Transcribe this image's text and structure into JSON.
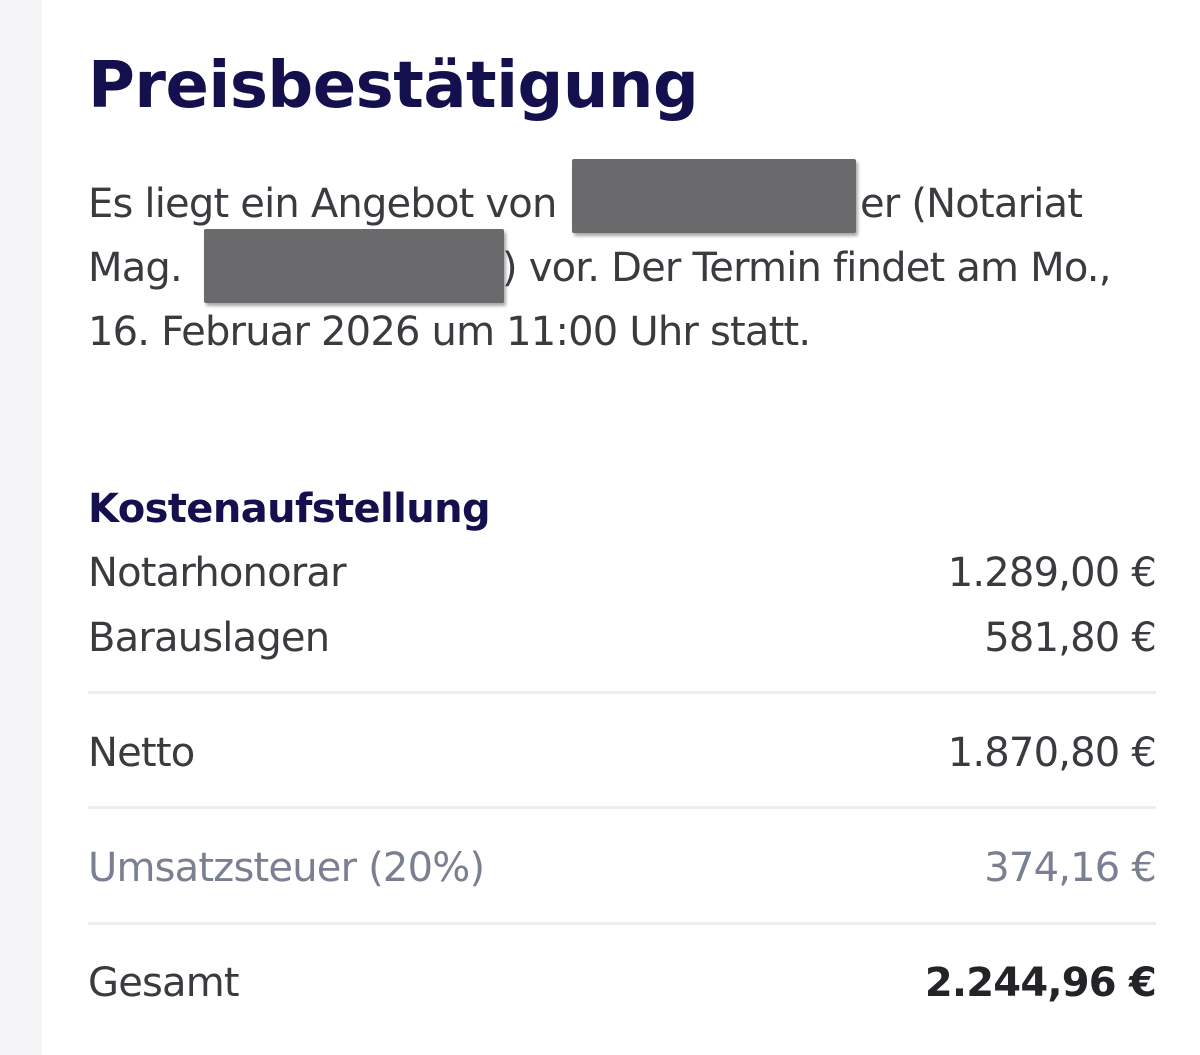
{
  "title": "Preisbestätigung",
  "intro": {
    "line1_a": "Es liegt ein Angebot von ",
    "line1_b": "er (Notariat",
    "line2_a": "Mag. ",
    "line2_b": ") vor. Der Termin findet am Mo.,",
    "line3": "16. Februar 2026 um 11:00 Uhr statt."
  },
  "costs": {
    "heading": "Kostenaufstellung",
    "rows": [
      {
        "label": "Notarhonorar",
        "amount": "1.289,00 €"
      },
      {
        "label": "Barauslagen",
        "amount": "581,80 €"
      },
      {
        "label": "Netto",
        "amount": "1.870,80 €"
      },
      {
        "label": "Umsatzsteuer (20%)",
        "amount": "374,16 €"
      },
      {
        "label": "Gesamt",
        "amount": "2.244,96 €"
      }
    ]
  },
  "colors": {
    "heading": "#14104d",
    "text": "#3a3a3f",
    "muted": "#7b7f92",
    "redaction": "#6a6a6d"
  }
}
